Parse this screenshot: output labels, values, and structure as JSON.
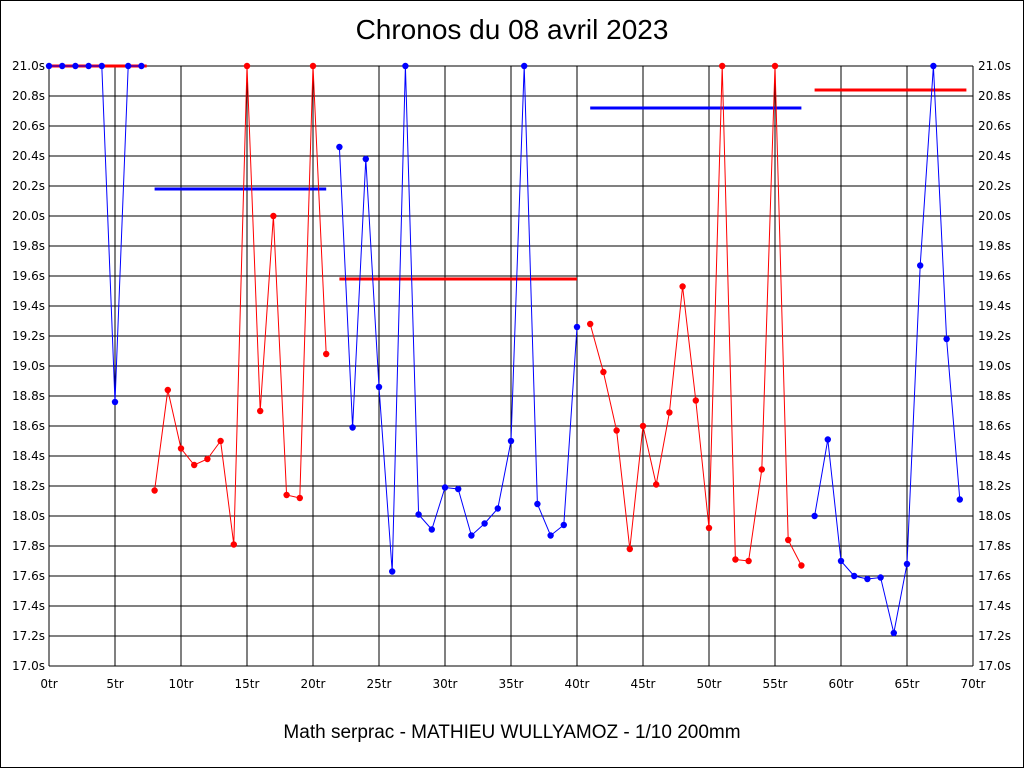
{
  "chart_data": {
    "type": "line",
    "title": "Chronos du 08 avril 2023",
    "footer": "Math serprac - MATHIEU WULLYAMOZ - 1/10 200mm",
    "colors": {
      "red": "#ff0000",
      "blue": "#0000ff",
      "grid": "#000000"
    },
    "xlim": [
      0,
      70
    ],
    "ylim": [
      17.0,
      21.0
    ],
    "x_ticks": [
      0,
      5,
      10,
      15,
      20,
      25,
      30,
      35,
      40,
      45,
      50,
      55,
      60,
      65,
      70
    ],
    "x_tick_labels": [
      "0tr",
      "5tr",
      "10tr",
      "15tr",
      "20tr",
      "25tr",
      "30tr",
      "35tr",
      "40tr",
      "45tr",
      "50tr",
      "55tr",
      "60tr",
      "65tr",
      "70tr"
    ],
    "y_ticks": [
      17.0,
      17.2,
      17.4,
      17.6,
      17.8,
      18.0,
      18.2,
      18.4,
      18.6,
      18.8,
      19.0,
      19.2,
      19.4,
      19.6,
      19.8,
      20.0,
      20.2,
      20.4,
      20.6,
      20.8,
      21.0
    ],
    "y_tick_labels": [
      "17.0s",
      "17.2s",
      "17.4s",
      "17.6s",
      "17.8s",
      "18.0s",
      "18.2s",
      "18.4s",
      "18.6s",
      "18.8s",
      "19.0s",
      "19.2s",
      "19.4s",
      "19.6s",
      "19.8s",
      "20.0s",
      "20.2s",
      "20.4s",
      "20.6s",
      "20.8s",
      "21.0s"
    ],
    "grid": true,
    "segments": [
      {
        "color": "blue",
        "points": [
          [
            0,
            21.0
          ],
          [
            1,
            21.0
          ],
          [
            2,
            21.0
          ],
          [
            3,
            21.0
          ],
          [
            4,
            21.0
          ],
          [
            5,
            18.76
          ],
          [
            6,
            21.0
          ],
          [
            7,
            21.0
          ]
        ]
      },
      {
        "color": "red",
        "points": [
          [
            8,
            18.17
          ],
          [
            9,
            18.84
          ],
          [
            10,
            18.45
          ],
          [
            11,
            18.34
          ],
          [
            12,
            18.38
          ],
          [
            13,
            18.5
          ],
          [
            14,
            17.81
          ],
          [
            15,
            21.0
          ],
          [
            16,
            18.7
          ],
          [
            17,
            20.0
          ],
          [
            18,
            18.14
          ],
          [
            19,
            18.12
          ],
          [
            20,
            21.0
          ],
          [
            21,
            19.08
          ]
        ]
      },
      {
        "color": "blue",
        "points": [
          [
            22,
            20.46
          ],
          [
            23,
            18.59
          ],
          [
            24,
            20.38
          ],
          [
            25,
            18.86
          ],
          [
            26,
            17.63
          ],
          [
            27,
            21.0
          ],
          [
            28,
            18.01
          ],
          [
            29,
            17.91
          ],
          [
            30,
            18.19
          ],
          [
            31,
            18.18
          ],
          [
            32,
            17.87
          ],
          [
            33,
            17.95
          ],
          [
            34,
            18.05
          ],
          [
            35,
            18.5
          ],
          [
            36,
            21.0
          ],
          [
            37,
            18.08
          ],
          [
            38,
            17.87
          ],
          [
            39,
            17.94
          ],
          [
            40,
            19.26
          ]
        ]
      },
      {
        "color": "red",
        "points": [
          [
            41,
            19.28
          ],
          [
            42,
            18.96
          ],
          [
            43,
            18.57
          ],
          [
            44,
            17.78
          ],
          [
            45,
            18.6
          ],
          [
            46,
            18.21
          ],
          [
            47,
            18.69
          ],
          [
            48,
            19.53
          ],
          [
            49,
            18.77
          ],
          [
            50,
            17.92
          ],
          [
            51,
            21.0
          ],
          [
            52,
            17.71
          ],
          [
            53,
            17.7
          ],
          [
            54,
            18.31
          ],
          [
            55,
            21.0
          ],
          [
            56,
            17.84
          ],
          [
            57,
            17.67
          ]
        ]
      },
      {
        "color": "blue",
        "points": [
          [
            58,
            18.0
          ],
          [
            59,
            18.51
          ],
          [
            60,
            17.7
          ],
          [
            61,
            17.6
          ],
          [
            62,
            17.58
          ],
          [
            63,
            17.59
          ],
          [
            64,
            17.22
          ],
          [
            65,
            17.68
          ],
          [
            66,
            19.67
          ],
          [
            67,
            21.0
          ],
          [
            68,
            19.18
          ],
          [
            69,
            18.11
          ]
        ]
      }
    ],
    "averages": [
      {
        "color": "red",
        "x": [
          0,
          7.4
        ],
        "y": 21.0
      },
      {
        "color": "blue",
        "x": [
          8,
          21
        ],
        "y": 20.18
      },
      {
        "color": "red",
        "x": [
          22,
          40
        ],
        "y": 19.58
      },
      {
        "color": "blue",
        "x": [
          41,
          57
        ],
        "y": 20.72
      },
      {
        "color": "red",
        "x": [
          58,
          69.5
        ],
        "y": 20.84
      }
    ]
  }
}
